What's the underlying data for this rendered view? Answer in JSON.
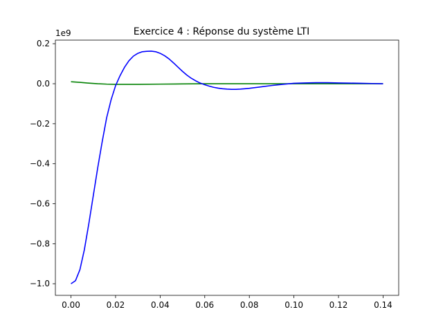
{
  "chart_data": {
    "type": "line",
    "title": "Exercice 4 : Réponse du système LTI",
    "xlabel": "",
    "ylabel": "",
    "y_offset_label": "1e9",
    "y_multiplier": 1000000000,
    "xlim": [
      -0.007,
      0.147
    ],
    "ylim": [
      -1.058,
      0.218
    ],
    "grid": false,
    "x_ticks": [
      {
        "value": 0.0,
        "label": "0.00"
      },
      {
        "value": 0.02,
        "label": "0.02"
      },
      {
        "value": 0.04,
        "label": "0.04"
      },
      {
        "value": 0.06,
        "label": "0.06"
      },
      {
        "value": 0.08,
        "label": "0.08"
      },
      {
        "value": 0.1,
        "label": "0.10"
      },
      {
        "value": 0.12,
        "label": "0.12"
      },
      {
        "value": 0.14,
        "label": "0.14"
      }
    ],
    "y_ticks": [
      {
        "value": 0.2,
        "label": "0.2"
      },
      {
        "value": 0.0,
        "label": "0.0"
      },
      {
        "value": -0.2,
        "label": "−0.2"
      },
      {
        "value": -0.4,
        "label": "−0.4"
      },
      {
        "value": -0.6,
        "label": "−0.6"
      },
      {
        "value": -0.8,
        "label": "−0.8"
      },
      {
        "value": -1.0,
        "label": "−1.0"
      }
    ],
    "series": [
      {
        "color": "#008000",
        "x": [
          0.0,
          0.004,
          0.008,
          0.012,
          0.016,
          0.02,
          0.024,
          0.03,
          0.04,
          0.05,
          0.06,
          0.08,
          0.1,
          0.12,
          0.14
        ],
        "y": [
          0.01,
          0.007,
          0.003,
          0.0,
          -0.002,
          -0.003,
          -0.003,
          -0.003,
          -0.002,
          -0.001,
          0.0,
          0.0,
          0.0,
          0.0,
          0.0
        ]
      },
      {
        "color": "#0000ff",
        "x": [
          0.0,
          0.002,
          0.004,
          0.006,
          0.008,
          0.01,
          0.012,
          0.014,
          0.016,
          0.018,
          0.02,
          0.022,
          0.024,
          0.026,
          0.028,
          0.03,
          0.032,
          0.034,
          0.036,
          0.038,
          0.04,
          0.042,
          0.044,
          0.046,
          0.048,
          0.05,
          0.052,
          0.054,
          0.056,
          0.058,
          0.06,
          0.062,
          0.064,
          0.066,
          0.068,
          0.07,
          0.072,
          0.074,
          0.076,
          0.078,
          0.08,
          0.085,
          0.09,
          0.095,
          0.1,
          0.105,
          0.11,
          0.115,
          0.12,
          0.125,
          0.13,
          0.135,
          0.14
        ],
        "y": [
          -1.0,
          -0.985,
          -0.93,
          -0.83,
          -0.7,
          -0.56,
          -0.42,
          -0.29,
          -0.17,
          -0.08,
          -0.01,
          0.04,
          0.082,
          0.115,
          0.138,
          0.152,
          0.16,
          0.162,
          0.163,
          0.16,
          0.152,
          0.14,
          0.124,
          0.104,
          0.083,
          0.062,
          0.043,
          0.027,
          0.014,
          0.003,
          -0.005,
          -0.012,
          -0.018,
          -0.022,
          -0.025,
          -0.027,
          -0.028,
          -0.028,
          -0.027,
          -0.025,
          -0.023,
          -0.016,
          -0.009,
          -0.003,
          0.002,
          0.004,
          0.005,
          0.005,
          0.004,
          0.003,
          0.002,
          0.001,
          0.0
        ]
      }
    ]
  }
}
